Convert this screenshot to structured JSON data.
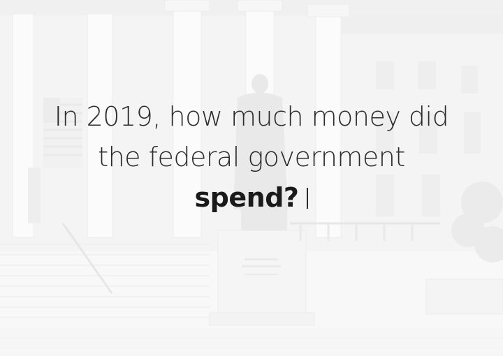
{
  "hero": {
    "background_image": "treasury-building-statue-photo",
    "headline": {
      "line1": "In 2019, how much money did",
      "line2": "the federal government",
      "emphasis": "spend?"
    },
    "cursor_icon": "text-cursor-icon"
  },
  "colors": {
    "text": "#2b2b2b",
    "emphasis": "#1a1a1a",
    "background": "#f2f2f2"
  }
}
